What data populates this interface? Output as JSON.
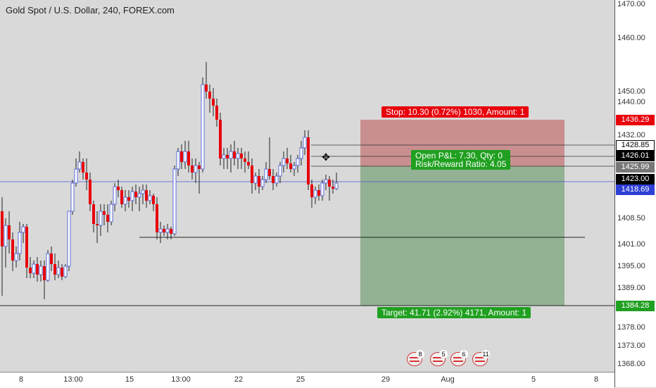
{
  "title": "Gold Spot / U.S. Dollar, 240, FOREX.com",
  "colors": {
    "up": "#5b6cd6",
    "down": "#e8000b",
    "stop_zone": "#c98f8f",
    "target_zone": "#93b193",
    "stop_label": "#e8000b",
    "target_label": "#20a020"
  },
  "price_axis": {
    "labels": [
      "1470.00",
      "1460.00",
      "1450.00",
      "1440.00",
      "1432.00",
      "1408.50",
      "1401.00",
      "1395.00",
      "1389.00",
      "1378.00",
      "1373.00",
      "1368.00"
    ],
    "tags": [
      {
        "text": "1436.29",
        "color": "#e8000b"
      },
      {
        "text": "1428.85",
        "color": "#ffffff",
        "fg": "#000000"
      },
      {
        "text": "1426.01",
        "color": "#000000"
      },
      {
        "text": "1425.99",
        "color": "#777777"
      },
      {
        "text": "1423.00",
        "color": "#000000"
      },
      {
        "text": "1418.69",
        "color": "#2e3fd6"
      },
      {
        "text": "1384.28",
        "color": "#20a020"
      }
    ]
  },
  "time_axis": [
    "8",
    "13:00",
    "15",
    "13:00",
    "22",
    "25",
    "29",
    "Aug",
    "5",
    "8"
  ],
  "position": {
    "stop_label": "Stop: 10.30 (0.72%) 1030, Amount: 1",
    "pnl_label": "Open P&L: 7.30, Qty: 0",
    "rr_label": "Risk/Reward Ratio: 4.05",
    "target_label": "Target: 41.71 (2.92%) 4171, Amount: 1"
  },
  "events": [
    "8",
    "5",
    "6",
    "11"
  ],
  "icons": {
    "event": "us-flag-icon",
    "cursor": "move-crosshair-icon"
  }
}
